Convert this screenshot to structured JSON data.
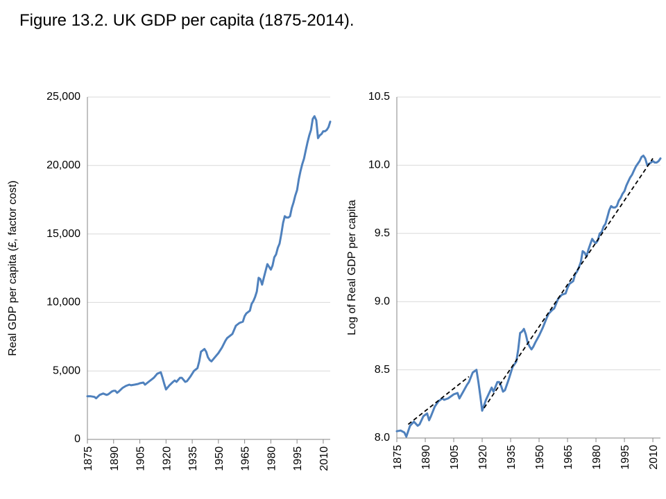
{
  "figure": {
    "title": "Figure 13.2. UK GDP per capita (1875-2014)."
  },
  "colors": {
    "series": "#4f81bd",
    "trend": "#000000",
    "grid": "#d9d9d9",
    "axis": "#868686"
  },
  "chart_data": [
    {
      "type": "line",
      "title": "",
      "xlabel": "",
      "ylabel": "Real GDP per capita (£, factor cost)",
      "xlim": [
        1875,
        2014
      ],
      "ylim": [
        0,
        25000
      ],
      "yticks": [
        0,
        5000,
        10000,
        15000,
        20000,
        25000
      ],
      "ytick_labels": [
        "0",
        "5,000",
        "10,000",
        "15,000",
        "20,000",
        "25,000"
      ],
      "xticks": [
        1875,
        1890,
        1905,
        1920,
        1935,
        1950,
        1965,
        1980,
        1995,
        2010
      ],
      "xtick_labels": [
        "1875",
        "1890",
        "1905",
        "1920",
        "1935",
        "1950",
        "1965",
        "1980",
        "1995",
        "2010"
      ],
      "grid": "horizontal",
      "legend": "none",
      "series": [
        {
          "x": [
            1875,
            1877,
            1879,
            1880,
            1882,
            1884,
            1886,
            1887,
            1889,
            1890,
            1891,
            1892,
            1893,
            1895,
            1897,
            1899,
            1900,
            1902,
            1904,
            1905,
            1907,
            1908,
            1910,
            1912,
            1913,
            1915,
            1917,
            1918,
            1919,
            1920,
            1921,
            1922,
            1924,
            1925,
            1926,
            1928,
            1929,
            1930,
            1931,
            1932,
            1934,
            1936,
            1938,
            1939,
            1940,
            1941,
            1942,
            1943,
            1944,
            1945,
            1946,
            1947,
            1948,
            1950,
            1952,
            1954,
            1955,
            1957,
            1958,
            1960,
            1962,
            1964,
            1965,
            1966,
            1968,
            1969,
            1970,
            1971,
            1972,
            1973,
            1974,
            1975,
            1976,
            1977,
            1978,
            1979,
            1980,
            1981,
            1982,
            1983,
            1984,
            1985,
            1986,
            1987,
            1988,
            1989,
            1990,
            1991,
            1992,
            1993,
            1994,
            1995,
            1996,
            1997,
            1998,
            1999,
            2000,
            2001,
            2002,
            2003,
            2004,
            2005,
            2006,
            2007,
            2008,
            2009,
            2010,
            2011,
            2012,
            2013,
            2014
          ],
          "y": [
            3150,
            3150,
            3100,
            3000,
            3250,
            3350,
            3250,
            3300,
            3500,
            3550,
            3550,
            3400,
            3500,
            3750,
            3900,
            4000,
            3950,
            4000,
            4050,
            4100,
            4150,
            4000,
            4200,
            4400,
            4500,
            4800,
            4900,
            4500,
            4050,
            3650,
            3800,
            3950,
            4200,
            4300,
            4200,
            4500,
            4500,
            4350,
            4200,
            4250,
            4600,
            5000,
            5200,
            5700,
            6400,
            6500,
            6600,
            6400,
            6000,
            5800,
            5700,
            5850,
            6000,
            6300,
            6700,
            7200,
            7400,
            7600,
            7700,
            8300,
            8500,
            8600,
            9000,
            9200,
            9400,
            9900,
            10100,
            10400,
            10800,
            11800,
            11700,
            11300,
            11800,
            12300,
            12800,
            12600,
            12400,
            12700,
            13300,
            13500,
            14000,
            14300,
            15000,
            15800,
            16300,
            16200,
            16200,
            16300,
            16900,
            17300,
            17800,
            18200,
            19000,
            19600,
            20100,
            20500,
            21100,
            21700,
            22200,
            22600,
            23400,
            23600,
            23300,
            22000,
            22200,
            22300,
            22500,
            22500,
            22600,
            22800,
            23200
          ]
        }
      ]
    },
    {
      "type": "line",
      "title": "",
      "xlabel": "",
      "ylabel": "Log of Real GDP per capita",
      "xlim": [
        1875,
        2014
      ],
      "ylim": [
        8.0,
        10.5
      ],
      "yticks": [
        8.0,
        8.5,
        9.0,
        9.5,
        10.0,
        10.5
      ],
      "ytick_labels": [
        "8.0",
        "8.5",
        "9.0",
        "9.5",
        "10.0",
        "10.5"
      ],
      "xticks": [
        1875,
        1890,
        1905,
        1920,
        1935,
        1950,
        1965,
        1980,
        1995,
        2010
      ],
      "xtick_labels": [
        "1875",
        "1890",
        "1905",
        "1920",
        "1935",
        "1950",
        "1965",
        "1980",
        "1995",
        "2010"
      ],
      "grid": "horizontal",
      "legend": "none",
      "series": [
        {
          "x": [
            1875,
            1877,
            1879,
            1880,
            1882,
            1884,
            1886,
            1887,
            1889,
            1890,
            1891,
            1892,
            1893,
            1895,
            1897,
            1899,
            1900,
            1902,
            1904,
            1905,
            1907,
            1908,
            1910,
            1912,
            1913,
            1915,
            1917,
            1918,
            1919,
            1920,
            1921,
            1922,
            1924,
            1925,
            1926,
            1928,
            1929,
            1930,
            1931,
            1932,
            1934,
            1936,
            1938,
            1939,
            1940,
            1941,
            1942,
            1943,
            1944,
            1945,
            1946,
            1947,
            1948,
            1950,
            1952,
            1954,
            1955,
            1957,
            1958,
            1960,
            1962,
            1964,
            1965,
            1966,
            1968,
            1969,
            1970,
            1971,
            1972,
            1973,
            1974,
            1975,
            1976,
            1977,
            1978,
            1979,
            1980,
            1981,
            1982,
            1983,
            1984,
            1985,
            1986,
            1987,
            1988,
            1989,
            1990,
            1991,
            1992,
            1993,
            1994,
            1995,
            1996,
            1997,
            1998,
            1999,
            2000,
            2001,
            2002,
            2003,
            2004,
            2005,
            2006,
            2007,
            2008,
            2009,
            2010,
            2011,
            2012,
            2013,
            2014
          ],
          "y": [
            8.05,
            8.055,
            8.04,
            8.01,
            8.09,
            8.12,
            8.09,
            8.1,
            8.16,
            8.17,
            8.18,
            8.13,
            8.16,
            8.23,
            8.27,
            8.29,
            8.28,
            8.29,
            8.31,
            8.32,
            8.33,
            8.29,
            8.34,
            8.39,
            8.41,
            8.48,
            8.5,
            8.41,
            8.31,
            8.2,
            8.24,
            8.28,
            8.34,
            8.37,
            8.34,
            8.41,
            8.41,
            8.38,
            8.34,
            8.35,
            8.43,
            8.52,
            8.56,
            8.65,
            8.77,
            8.78,
            8.8,
            8.76,
            8.7,
            8.67,
            8.65,
            8.67,
            8.7,
            8.75,
            8.81,
            8.88,
            8.91,
            8.94,
            8.95,
            9.02,
            9.05,
            9.06,
            9.1,
            9.13,
            9.15,
            9.2,
            9.22,
            9.25,
            9.29,
            9.37,
            9.36,
            9.33,
            9.38,
            9.42,
            9.46,
            9.44,
            9.43,
            9.45,
            9.5,
            9.51,
            9.55,
            9.57,
            9.62,
            9.67,
            9.7,
            9.69,
            9.69,
            9.7,
            9.74,
            9.76,
            9.79,
            9.81,
            9.85,
            9.88,
            9.91,
            9.93,
            9.96,
            9.99,
            10.01,
            10.03,
            10.06,
            10.07,
            10.05,
            10.0,
            10.01,
            10.02,
            10.03,
            10.02,
            10.02,
            10.03,
            10.05
          ]
        },
        {
          "type": "trend",
          "style": "dashed",
          "segments": [
            {
              "x": [
                1881,
                1913
              ],
              "y": [
                8.1,
                8.45
              ]
            },
            {
              "x": [
                1921,
                2010
              ],
              "y": [
                8.22,
                10.05
              ]
            }
          ]
        }
      ]
    }
  ]
}
